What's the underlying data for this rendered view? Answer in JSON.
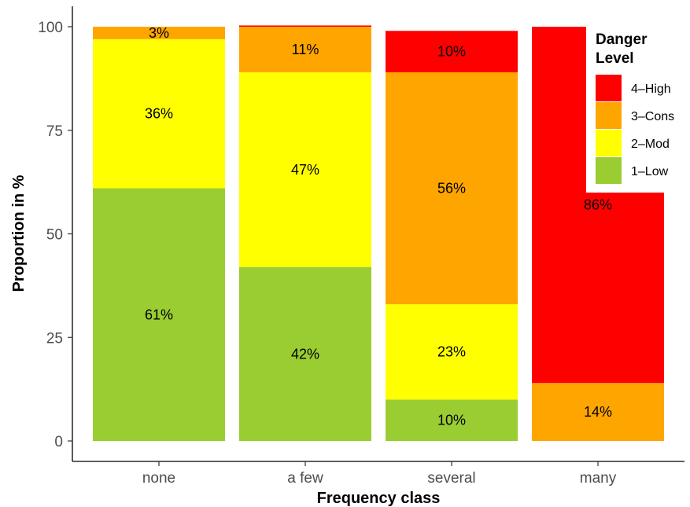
{
  "chart_data": {
    "type": "bar",
    "stacked": true,
    "categories": [
      "none",
      "a few",
      "several",
      "many"
    ],
    "xlabel": "Frequency class",
    "ylabel": "Proportion in %",
    "ylim": [
      0,
      100
    ],
    "yticks": [
      0,
      25,
      50,
      75,
      100
    ],
    "grid": false,
    "series": [
      {
        "name": "1–Low",
        "color": "#9ACD32",
        "values": [
          61,
          42,
          10,
          0
        ]
      },
      {
        "name": "2–Mod",
        "color": "#FFFF00",
        "values": [
          36,
          47,
          23,
          0
        ]
      },
      {
        "name": "3–Cons",
        "color": "#FFA500",
        "values": [
          3,
          11,
          56,
          14
        ]
      },
      {
        "name": "4–High",
        "color": "#FF0000",
        "values": [
          0,
          0.3,
          10,
          86
        ]
      }
    ],
    "data_labels": [
      [
        "61%",
        "36%",
        "3%",
        ""
      ],
      [
        "42%",
        "47%",
        "11%",
        ""
      ],
      [
        "10%",
        "23%",
        "56%",
        "10%"
      ],
      [
        "",
        "",
        "14%",
        "86%"
      ]
    ],
    "legend": {
      "title_lines": [
        "Danger",
        "Level"
      ],
      "placement": "top-right",
      "order": [
        "4–High",
        "3–Cons",
        "2–Mod",
        "1–Low"
      ]
    }
  }
}
